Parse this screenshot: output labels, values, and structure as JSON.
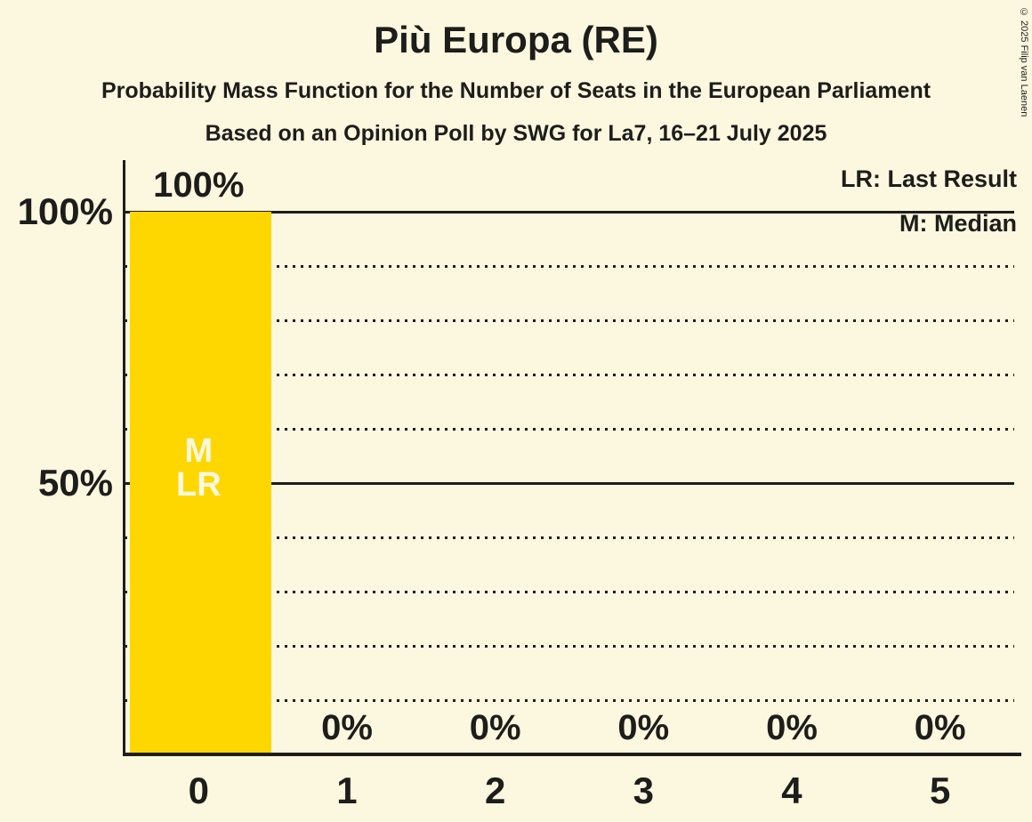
{
  "title": "Più Europa (RE)",
  "subtitle1": "Probability Mass Function for the Number of Seats in the European Parliament",
  "subtitle2": "Based on an Opinion Poll by SWG for La7, 16–21 July 2025",
  "copyright": "© 2025 Filip van Laenen",
  "legend": {
    "last_result": "LR: Last Result",
    "median": "M: Median"
  },
  "y_axis": {
    "labels": [
      {
        "pct": 100,
        "text": "100%"
      },
      {
        "pct": 50,
        "text": "50%"
      }
    ]
  },
  "chart_data": {
    "type": "bar",
    "title": "Più Europa (RE)",
    "xlabel": "Number of Seats in the European Parliament",
    "ylabel": "Probability",
    "categories": [
      "0",
      "1",
      "2",
      "3",
      "4",
      "5"
    ],
    "values": [
      100,
      0,
      0,
      0,
      0,
      0
    ],
    "value_labels": [
      "100%",
      "0%",
      "0%",
      "0%",
      "0%",
      "0%"
    ],
    "ylim": [
      0,
      100
    ],
    "gridlines": {
      "solid_pcts": [
        50,
        100
      ],
      "dotted_pcts": [
        10,
        20,
        30,
        40,
        60,
        70,
        80,
        90
      ]
    },
    "legend_position": "top-right",
    "bar_annotations": [
      {
        "category_index": 0,
        "lines": [
          "M",
          "LR"
        ]
      }
    ],
    "colors": {
      "bar": "#FFD700",
      "background": "#FCF8DF",
      "text": "#1D1D1B",
      "annotation_text": "#FCF8DF"
    }
  }
}
